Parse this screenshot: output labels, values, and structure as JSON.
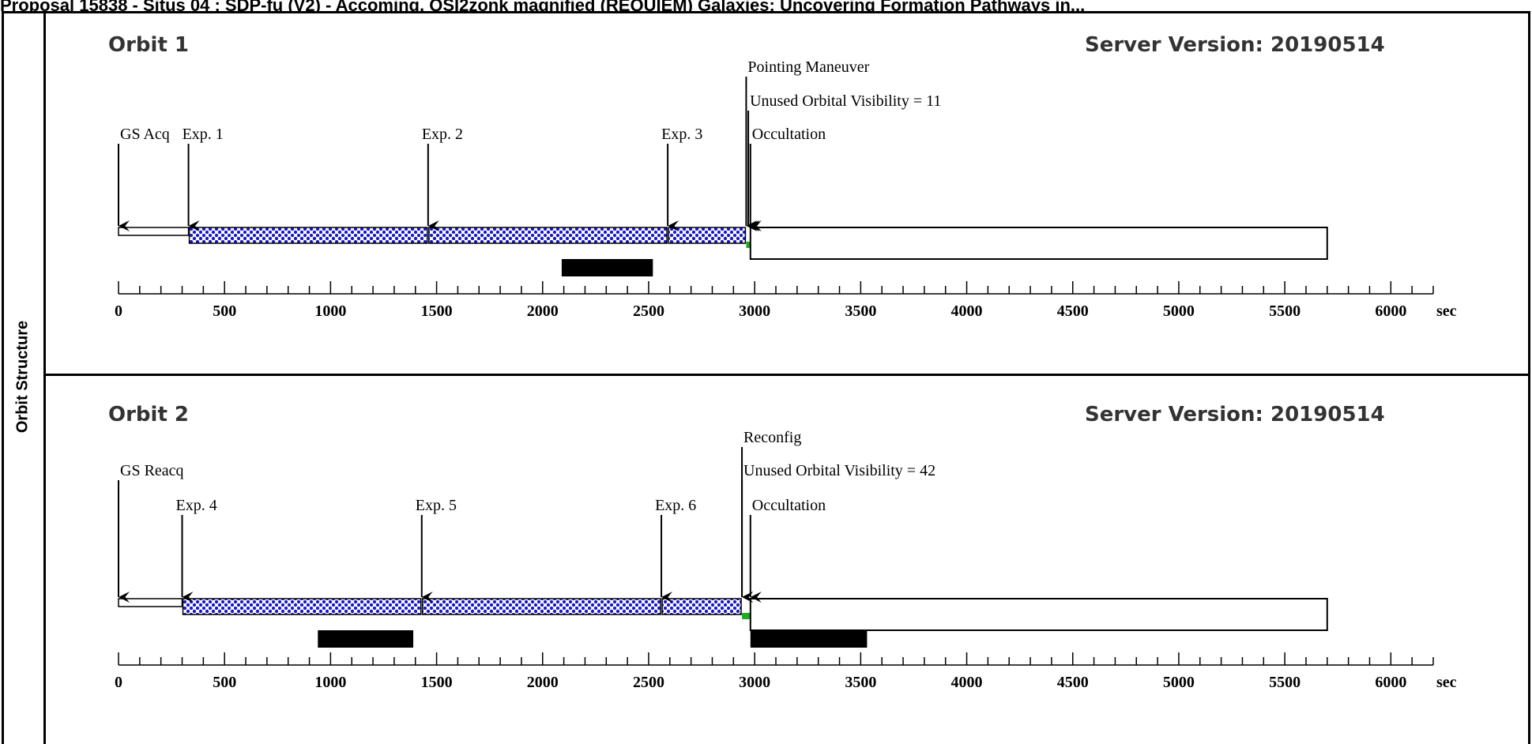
{
  "header_text": "Proposal 15838 - Situs 04 : SDP-fu (V2) - Accoming, QSI2zonk magnified (REQUIEM) Galaxies: Uncovering Formation Pathways in...",
  "side_label": "Orbit Structure",
  "colors": {
    "exposure_fill": "#1a1acc",
    "marker_green": "#22aa22",
    "bar_black": "#000000"
  },
  "axis": {
    "min": 0,
    "max": 6000,
    "major_step": 500,
    "minor_step": 100,
    "labels": [
      "0",
      "500",
      "1000",
      "1500",
      "2000",
      "2500",
      "3000",
      "3500",
      "4000",
      "4500",
      "5000",
      "5500",
      "6000"
    ],
    "unit": "sec"
  },
  "orbits": [
    {
      "title": "Orbit 1",
      "server_version": "Server Version: 20190514",
      "events": [
        {
          "label": "GS Acq",
          "time": 0,
          "label_level": 3
        },
        {
          "label": "Exp. 1",
          "time": 330,
          "label_level": 3
        },
        {
          "label": "Exp. 2",
          "time": 1460,
          "label_level": 3
        },
        {
          "label": "Exp. 3",
          "time": 2590,
          "label_level": 3
        },
        {
          "label": "Pointing Maneuver",
          "time": 2960,
          "label_level": 1
        },
        {
          "label": "Unused Orbital Visibility = 11",
          "time": 2970,
          "label_level": 2
        },
        {
          "label": "Occultation",
          "time": 2980,
          "label_level": 3
        }
      ],
      "segments": [
        {
          "kind": "guide_star",
          "start": 0,
          "end": 330
        },
        {
          "kind": "exposure",
          "start": 330,
          "end": 1460
        },
        {
          "kind": "exposure",
          "start": 1460,
          "end": 2590
        },
        {
          "kind": "exposure",
          "start": 2590,
          "end": 2960
        },
        {
          "kind": "maneuver",
          "start": 2960,
          "end": 2980
        },
        {
          "kind": "occultation",
          "start": 2980,
          "end": 5700
        }
      ],
      "black_bars": [
        {
          "start": 2090,
          "end": 2520
        }
      ]
    },
    {
      "title": "Orbit 2",
      "server_version": "Server Version: 20190514",
      "events": [
        {
          "label": "GS Reacq",
          "time": 0,
          "label_level": 2
        },
        {
          "label": "Exp. 4",
          "time": 300,
          "label_level": 3
        },
        {
          "label": "Exp. 5",
          "time": 1430,
          "label_level": 3
        },
        {
          "label": "Exp. 6",
          "time": 2560,
          "label_level": 3
        },
        {
          "label": "Reconfig",
          "time": 2940,
          "label_level": 1
        },
        {
          "label": "Unused Orbital Visibility = 42",
          "time": 2940,
          "label_level": 2
        },
        {
          "label": "Occultation",
          "time": 2980,
          "label_level": 3
        }
      ],
      "segments": [
        {
          "kind": "guide_star",
          "start": 0,
          "end": 300
        },
        {
          "kind": "exposure",
          "start": 300,
          "end": 1430
        },
        {
          "kind": "exposure",
          "start": 1430,
          "end": 2560
        },
        {
          "kind": "exposure",
          "start": 2560,
          "end": 2940
        },
        {
          "kind": "maneuver",
          "start": 2940,
          "end": 2980
        },
        {
          "kind": "occultation",
          "start": 2980,
          "end": 5700
        }
      ],
      "black_bars": [
        {
          "start": 940,
          "end": 1390
        },
        {
          "start": 2980,
          "end": 3530
        }
      ]
    }
  ]
}
